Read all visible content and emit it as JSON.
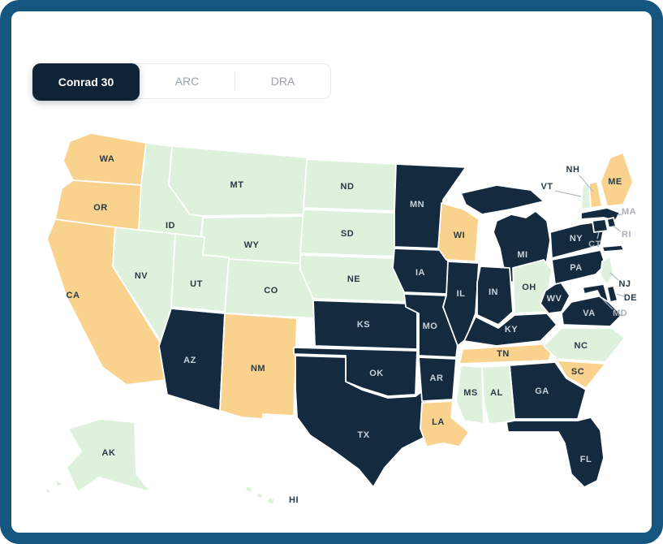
{
  "tabs": {
    "items": [
      {
        "label": "Conrad 30",
        "active": true
      },
      {
        "label": "ARC",
        "active": false
      },
      {
        "label": "DRA",
        "active": false
      }
    ],
    "active_bg": "#0F2336",
    "active_text": "#FFFFFF",
    "inactive_text": "#9AA3AC"
  },
  "map": {
    "colors": {
      "dark": "#132A3F",
      "yellow": "#F9D38D",
      "green": "#DEF1DD"
    },
    "label_colors": {
      "light": "#C9D3DA",
      "dark": "#2A3946",
      "muted": "#A9B2BB"
    },
    "frame_color": "#155680",
    "states": [
      {
        "id": "WA",
        "label": "WA",
        "category": "yellow",
        "label_style": "dark"
      },
      {
        "id": "OR",
        "label": "OR",
        "category": "yellow",
        "label_style": "dark"
      },
      {
        "id": "CA",
        "label": "CA",
        "category": "yellow",
        "label_style": "dark"
      },
      {
        "id": "ID",
        "label": "ID",
        "category": "green",
        "label_style": "dark"
      },
      {
        "id": "MT",
        "label": "MT",
        "category": "green",
        "label_style": "dark"
      },
      {
        "id": "WY",
        "label": "WY",
        "category": "green",
        "label_style": "dark"
      },
      {
        "id": "NV",
        "label": "NV",
        "category": "green",
        "label_style": "dark"
      },
      {
        "id": "UT",
        "label": "UT",
        "category": "green",
        "label_style": "dark"
      },
      {
        "id": "CO",
        "label": "CO",
        "category": "green",
        "label_style": "dark"
      },
      {
        "id": "AZ",
        "label": "AZ",
        "category": "dark",
        "label_style": "light"
      },
      {
        "id": "NM",
        "label": "NM",
        "category": "yellow",
        "label_style": "dark"
      },
      {
        "id": "ND",
        "label": "ND",
        "category": "green",
        "label_style": "dark"
      },
      {
        "id": "SD",
        "label": "SD",
        "category": "green",
        "label_style": "dark"
      },
      {
        "id": "NE",
        "label": "NE",
        "category": "green",
        "label_style": "dark"
      },
      {
        "id": "KS",
        "label": "KS",
        "category": "dark",
        "label_style": "light"
      },
      {
        "id": "OK",
        "label": "OK",
        "category": "dark",
        "label_style": "light"
      },
      {
        "id": "TX",
        "label": "TX",
        "category": "dark",
        "label_style": "light"
      },
      {
        "id": "MN",
        "label": "MN",
        "category": "dark",
        "label_style": "light"
      },
      {
        "id": "IA",
        "label": "IA",
        "category": "dark",
        "label_style": "light"
      },
      {
        "id": "MO",
        "label": "MO",
        "category": "dark",
        "label_style": "light"
      },
      {
        "id": "AR",
        "label": "AR",
        "category": "dark",
        "label_style": "light"
      },
      {
        "id": "LA",
        "label": "LA",
        "category": "yellow",
        "label_style": "dark"
      },
      {
        "id": "WI",
        "label": "WI",
        "category": "yellow",
        "label_style": "dark"
      },
      {
        "id": "IL",
        "label": "IL",
        "category": "dark",
        "label_style": "light"
      },
      {
        "id": "MI",
        "label": "MI",
        "category": "dark",
        "label_style": "light"
      },
      {
        "id": "IN",
        "label": "IN",
        "category": "dark",
        "label_style": "light"
      },
      {
        "id": "OH",
        "label": "OH",
        "category": "green",
        "label_style": "dark"
      },
      {
        "id": "KY",
        "label": "KY",
        "category": "dark",
        "label_style": "light"
      },
      {
        "id": "TN",
        "label": "TN",
        "category": "yellow",
        "label_style": "dark"
      },
      {
        "id": "WV",
        "label": "WV",
        "category": "dark",
        "label_style": "light"
      },
      {
        "id": "VA",
        "label": "VA",
        "category": "dark",
        "label_style": "light"
      },
      {
        "id": "NC",
        "label": "NC",
        "category": "green",
        "label_style": "dark"
      },
      {
        "id": "SC",
        "label": "SC",
        "category": "yellow",
        "label_style": "dark"
      },
      {
        "id": "GA",
        "label": "GA",
        "category": "dark",
        "label_style": "light"
      },
      {
        "id": "AL",
        "label": "AL",
        "category": "green",
        "label_style": "dark"
      },
      {
        "id": "MS",
        "label": "MS",
        "category": "green",
        "label_style": "dark"
      },
      {
        "id": "FL",
        "label": "FL",
        "category": "dark",
        "label_style": "light"
      },
      {
        "id": "PA",
        "label": "PA",
        "category": "dark",
        "label_style": "light"
      },
      {
        "id": "NY",
        "label": "NY",
        "category": "dark",
        "label_style": "light"
      },
      {
        "id": "ME",
        "label": "ME",
        "category": "yellow",
        "label_style": "dark"
      },
      {
        "id": "VT",
        "label": "VT",
        "category": "green",
        "label_style": "dark"
      },
      {
        "id": "NH",
        "label": "NH",
        "category": "yellow",
        "label_style": "dark"
      },
      {
        "id": "MA",
        "label": "MA",
        "category": "dark",
        "label_style": "muted"
      },
      {
        "id": "RI",
        "label": "RI",
        "category": "dark",
        "label_style": "muted"
      },
      {
        "id": "CT",
        "label": "CT",
        "category": "dark",
        "label_style": "muted"
      },
      {
        "id": "NJ",
        "label": "NJ",
        "category": "green",
        "label_style": "dark"
      },
      {
        "id": "DE",
        "label": "DE",
        "category": "dark",
        "label_style": "dark"
      },
      {
        "id": "MD",
        "label": "MD",
        "category": "dark",
        "label_style": "muted"
      },
      {
        "id": "AK",
        "label": "AK",
        "category": "green",
        "label_style": "dark"
      },
      {
        "id": "HI",
        "label": "HI",
        "category": "green",
        "label_style": "dark"
      }
    ]
  }
}
